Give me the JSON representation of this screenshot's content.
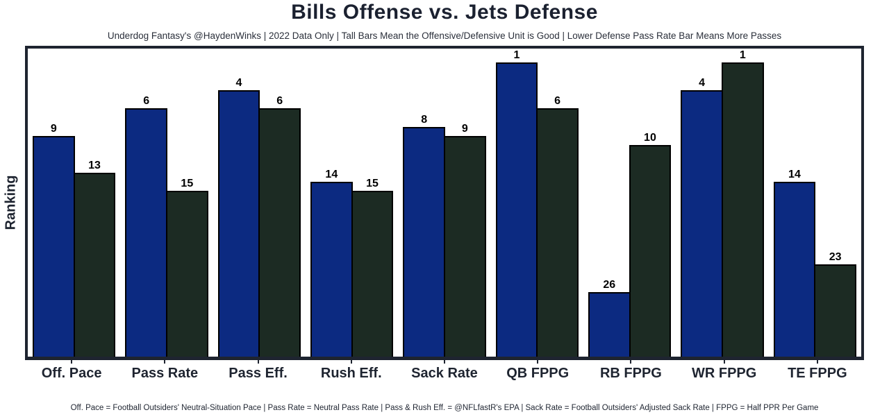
{
  "title": "Bills Offense vs. Jets Defense",
  "subtitle": "Underdog Fantasy's @HaydenWinks | 2022 Data Only | Tall Bars Mean the Offensive/Defensive Unit is Good | Lower Defense Pass Rate Bar Means More Passes",
  "footnote": "Off. Pace = Football Outsiders' Neutral-Situation Pace | Pass Rate = Neutral Pass Rate | Pass & Rush Eff. = @NFLfastR's EPA | Sack Rate = Football Outsiders' Adjusted Sack Rate | FPPG = Half PPR Per Game",
  "ylabel": "Ranking",
  "colors": {
    "offense": "#0c2a81",
    "defense": "#1c2b23",
    "axis": "#1e2430",
    "bar_edge": "#000000",
    "background": "#ffffff"
  },
  "chart_data": {
    "type": "bar",
    "categories": [
      "Off. Pace",
      "Pass Rate",
      "Pass Eff.",
      "Rush Eff.",
      "Sack Rate",
      "QB FPPG",
      "RB FPPG",
      "WR FPPG",
      "TE FPPG"
    ],
    "series": [
      {
        "name": "Bills Offense",
        "color": "#0c2a81",
        "values": [
          9,
          6,
          4,
          14,
          8,
          1,
          26,
          4,
          14
        ]
      },
      {
        "name": "Jets Defense",
        "color": "#1c2b23",
        "values": [
          13,
          15,
          6,
          15,
          9,
          6,
          10,
          1,
          23
        ]
      }
    ],
    "title": "Bills Offense vs. Jets Defense",
    "xlabel": "",
    "ylabel": "Ranking",
    "value_encoding": "values are NFL rankings; bar height = rank_base - rank, so rank 1 draws the tallest bar",
    "rank_base": 33,
    "ylim": [
      0,
      33.5
    ],
    "grid": false,
    "legend": "none"
  }
}
